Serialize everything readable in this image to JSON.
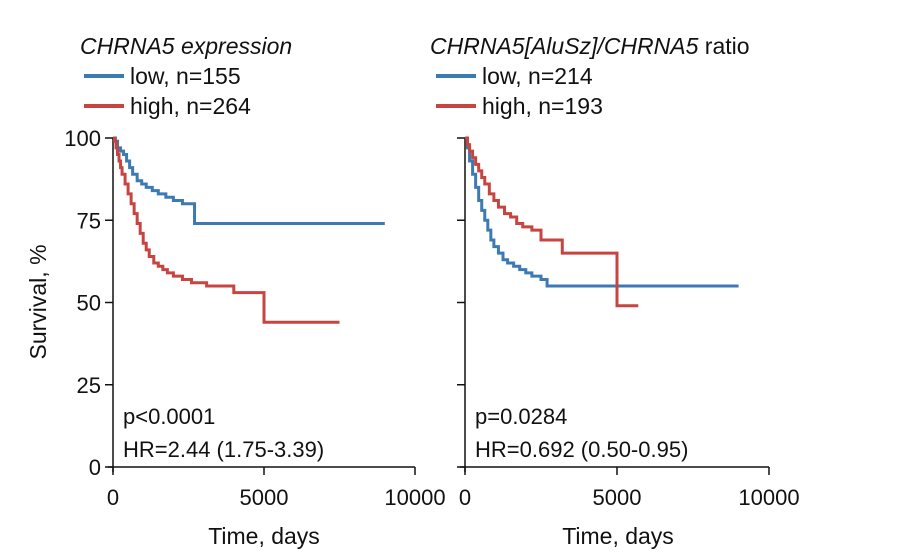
{
  "chart_data": [
    {
      "type": "line",
      "subtype": "kaplan-meier",
      "title": "CHRNA5 expression",
      "title_italic": "CHRNA5 expression",
      "title_regular": "",
      "xlabel": "Time, days",
      "ylabel": "Survival, %",
      "xlim": [
        0,
        10000
      ],
      "ylim": [
        0,
        100
      ],
      "x_ticks": [
        "0",
        "5000",
        "10000"
      ],
      "y_ticks": [
        "0",
        "25",
        "50",
        "75",
        "100"
      ],
      "legend_position": "top-left",
      "annotations": [
        "p<0.0001",
        "HR=2.44 (1.75-3.39)"
      ],
      "series": [
        {
          "name": "low, n=155",
          "color": "#3d7ab3",
          "x": [
            0,
            80,
            150,
            250,
            350,
            450,
            550,
            650,
            800,
            950,
            1100,
            1300,
            1500,
            1750,
            2000,
            2300,
            2700,
            3500,
            5000,
            7000,
            9000
          ],
          "y": [
            100,
            99,
            97,
            96,
            95,
            93,
            91,
            89,
            87,
            86,
            85,
            84,
            83,
            82,
            81,
            80,
            74,
            74,
            74,
            74,
            74
          ]
        },
        {
          "name": "high, n=264",
          "color": "#c74541",
          "x": [
            0,
            50,
            100,
            150,
            200,
            250,
            300,
            400,
            500,
            600,
            700,
            800,
            900,
            1000,
            1100,
            1200,
            1350,
            1500,
            1650,
            1800,
            2000,
            2300,
            2600,
            3100,
            4000,
            5000,
            6000,
            7500
          ],
          "y": [
            100,
            99,
            97,
            95,
            93,
            91,
            89,
            86,
            83,
            80,
            77,
            74,
            71,
            68,
            66,
            64,
            62,
            61,
            60,
            59,
            58,
            57,
            56,
            55,
            53,
            44,
            44,
            44
          ]
        }
      ]
    },
    {
      "type": "line",
      "subtype": "kaplan-meier",
      "title": "CHRNA5[AluSz]/CHRNA5 ratio",
      "title_italic": "CHRNA5[AluSz]/CHRNA5",
      "title_regular": " ratio",
      "xlabel": "Time, days",
      "ylabel": "",
      "xlim": [
        0,
        10000
      ],
      "ylim": [
        0,
        100
      ],
      "x_ticks": [
        "0",
        "5000",
        "10000"
      ],
      "y_ticks": [],
      "legend_position": "top-left",
      "annotations": [
        "p=0.0284",
        "HR=0.692 (0.50-0.95)"
      ],
      "series": [
        {
          "name": "low, n=214",
          "color": "#3d7ab3",
          "x": [
            0,
            80,
            150,
            250,
            350,
            450,
            550,
            650,
            750,
            850,
            950,
            1100,
            1250,
            1400,
            1600,
            1800,
            2000,
            2200,
            2500,
            2700,
            3500,
            5000,
            7000,
            9000
          ],
          "y": [
            100,
            97,
            93,
            89,
            85,
            81,
            78,
            75,
            72,
            69,
            67,
            65,
            63,
            62,
            61,
            60,
            59,
            58,
            57,
            55,
            55,
            55,
            55,
            55
          ]
        },
        {
          "name": "high, n=193",
          "color": "#c74541",
          "x": [
            0,
            80,
            150,
            250,
            350,
            450,
            550,
            650,
            800,
            950,
            1100,
            1300,
            1500,
            1700,
            1900,
            2200,
            2500,
            3000,
            3200,
            4000,
            4900,
            5000,
            5700
          ],
          "y": [
            100,
            98,
            96,
            94,
            92,
            90,
            88,
            86,
            83,
            81,
            79,
            77,
            76,
            74,
            73,
            72,
            69,
            69,
            65,
            65,
            65,
            49,
            49
          ]
        }
      ]
    }
  ]
}
